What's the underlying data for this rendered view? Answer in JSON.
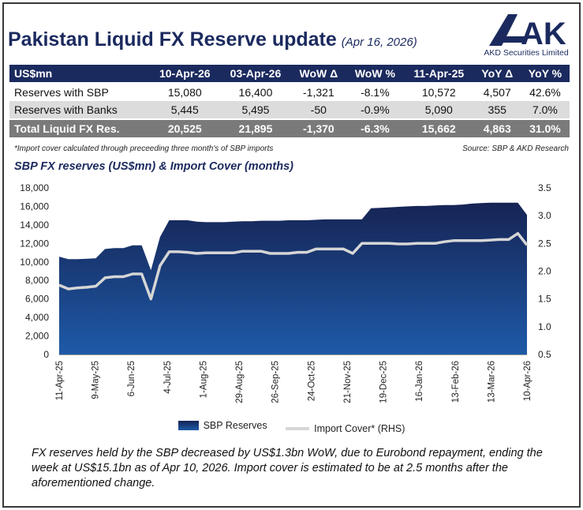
{
  "header": {
    "title": "Pakistan Liquid FX Reserve update",
    "date": "(Apr 16, 2026)",
    "company": "AKD Securities Limited",
    "logo_text": "AKD"
  },
  "table": {
    "columns": [
      "US$mn",
      "10-Apr-26",
      "03-Apr-26",
      "WoW Δ",
      "WoW %",
      "11-Apr-25",
      "YoY Δ",
      "YoY %"
    ],
    "rows": [
      [
        "Reserves with SBP",
        "15,080",
        "16,400",
        "-1,321",
        "-8.1%",
        "10,572",
        "4,507",
        "42.6%"
      ],
      [
        "Reserves with Banks",
        "5,445",
        "5,495",
        "-50",
        "-0.9%",
        "5,090",
        "355",
        "7.0%"
      ],
      [
        "Total Liquid FX Res.",
        "20,525",
        "21,895",
        "-1,370",
        "-6.3%",
        "15,662",
        "4,863",
        "31.0%"
      ]
    ]
  },
  "note": "*Import cover calculated through preceeding three month's of SBP imports",
  "source": "Source: SBP & AKD Research",
  "chart_title": "SBP FX reserves (US$mn) & Import Cover (months)",
  "commentary": "FX reserves held by the SBP decreased by US$1.3bn WoW, due to Eurobond repayment, ending the week at US$15.1bn as of Apr 10, 2026. Import cover is estimated to be at 2.5 months after the aforementioned change.",
  "colors": {
    "navy": "#1b2a5e",
    "area_top": "#162454",
    "area_bottom": "#1e5aa8",
    "line": "#d6d6d6"
  },
  "chart_data": {
    "type": "area",
    "x_tick_labels": [
      "11-Apr-25",
      "9-May-25",
      "6-Jun-25",
      "4-Jul-25",
      "1-Aug-25",
      "29-Aug-25",
      "26-Sep-25",
      "24-Oct-25",
      "21-Nov-25",
      "19-Dec-25",
      "16-Jan-26",
      "13-Feb-26",
      "13-Mar-26",
      "10-Apr-26"
    ],
    "y_ticks": [
      0,
      2000,
      4000,
      6000,
      8000,
      10000,
      12000,
      14000,
      16000,
      18000
    ],
    "y_tick_labels": [
      "0",
      "2,000",
      "4,000",
      "6,000",
      "8,000",
      "10,000",
      "12,000",
      "14,000",
      "16,000",
      "18,000"
    ],
    "ylim": [
      0,
      18000
    ],
    "y2_ticks": [
      0.5,
      1.0,
      1.5,
      2.0,
      2.5,
      3.0,
      3.5
    ],
    "y2_tick_labels": [
      "0.5",
      "1.0",
      "1.5",
      "2.0",
      "2.5",
      "3.0",
      "3.5"
    ],
    "y2lim": [
      0.5,
      3.5
    ],
    "legend": "bottom",
    "grid": false,
    "series": [
      {
        "name": "SBP Reserves",
        "type": "area",
        "axis": "left",
        "values": [
          10570,
          10300,
          10300,
          10350,
          10400,
          11400,
          11500,
          11500,
          11800,
          11800,
          9100,
          12700,
          14500,
          14500,
          14500,
          14350,
          14300,
          14300,
          14300,
          14350,
          14400,
          14400,
          14450,
          14450,
          14450,
          14500,
          14500,
          14500,
          14550,
          14600,
          14600,
          14600,
          14600,
          14600,
          15800,
          15850,
          15900,
          15950,
          16000,
          16050,
          16050,
          16100,
          16150,
          16150,
          16200,
          16300,
          16350,
          16400,
          16400,
          16400,
          16400,
          15080
        ]
      },
      {
        "name": "Import Cover* (RHS)",
        "type": "line",
        "axis": "right",
        "values": [
          1.75,
          1.68,
          1.7,
          1.71,
          1.73,
          1.88,
          1.9,
          1.9,
          1.95,
          1.95,
          1.5,
          2.1,
          2.35,
          2.35,
          2.34,
          2.32,
          2.33,
          2.33,
          2.33,
          2.33,
          2.36,
          2.36,
          2.36,
          2.32,
          2.32,
          2.32,
          2.34,
          2.34,
          2.4,
          2.4,
          2.4,
          2.4,
          2.32,
          2.5,
          2.5,
          2.5,
          2.5,
          2.49,
          2.49,
          2.5,
          2.5,
          2.5,
          2.53,
          2.55,
          2.55,
          2.55,
          2.55,
          2.56,
          2.57,
          2.57,
          2.68,
          2.47
        ]
      }
    ]
  }
}
